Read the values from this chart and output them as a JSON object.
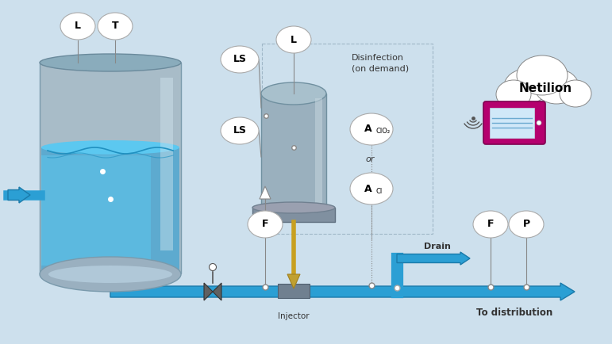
{
  "bg_color": "#cde0ed",
  "pipe_color": "#2b9fd4",
  "pipe_dark": "#1a7aaa",
  "instrument_bubble_color": "#ffffff",
  "instrument_bubble_edge": "#aaaaaa",
  "cloud_color": "#ffffff",
  "cloud_edge": "#888888",
  "tablet_color": "#b5006e",
  "text_color": "#333333",
  "dark_text": "#000000",
  "injector_color": "#c8a020",
  "labels": {
    "L1": "L",
    "T": "T",
    "LS1": "LS",
    "L2": "L",
    "LS2": "LS",
    "AClO2": "A",
    "sub_ClO2": "ClO₂",
    "ACl": "A",
    "sub_Cl": "Cl",
    "F1": "F",
    "F2": "F",
    "P": "P",
    "drain": "Drain",
    "injector": "Injector",
    "distribution": "To distribution",
    "disinfection": "Disinfection\n(on demand)",
    "netilion": "Netilion",
    "or": "or"
  }
}
